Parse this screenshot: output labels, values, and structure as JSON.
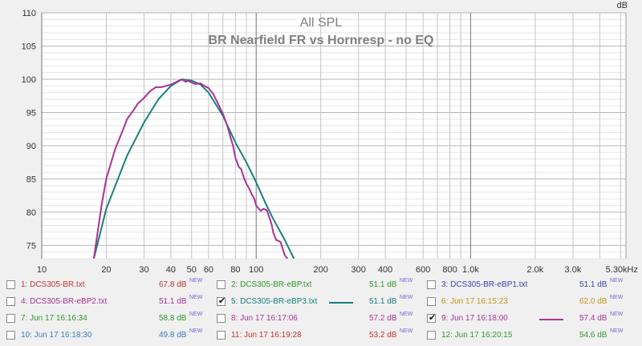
{
  "chart_data": {
    "type": "line",
    "title": "All SPL",
    "subtitle": "BR Nearfield FR vs Hornresp - no EQ",
    "ylabel": "dB",
    "xlabel": "",
    "x_scale": "log",
    "xlim": [
      10,
      5300
    ],
    "ylim": [
      73,
      110
    ],
    "grid": true,
    "y_ticks": [
      {
        "value": 75,
        "label": "75"
      },
      {
        "value": 80,
        "label": "80"
      },
      {
        "value": 85,
        "label": "85"
      },
      {
        "value": 90,
        "label": "90"
      },
      {
        "value": 95,
        "label": "95"
      },
      {
        "value": 100,
        "label": "100"
      },
      {
        "value": 105,
        "label": "105"
      },
      {
        "value": 110,
        "label": "110"
      }
    ],
    "x_ticks": [
      {
        "value": 10,
        "label": "10"
      },
      {
        "value": 20,
        "label": "20"
      },
      {
        "value": 30,
        "label": "30"
      },
      {
        "value": 40,
        "label": "40"
      },
      {
        "value": 50,
        "label": "50"
      },
      {
        "value": 60,
        "label": "60"
      },
      {
        "value": 80,
        "label": "80"
      },
      {
        "value": 100,
        "label": "100"
      },
      {
        "value": 200,
        "label": "200"
      },
      {
        "value": 300,
        "label": "300"
      },
      {
        "value": 400,
        "label": "400"
      },
      {
        "value": 600,
        "label": "600"
      },
      {
        "value": 800,
        "label": "800"
      },
      {
        "value": 1000,
        "label": "1.0k"
      },
      {
        "value": 2000,
        "label": "2.0k"
      },
      {
        "value": 3000,
        "label": "3.0k"
      },
      {
        "value": 5300,
        "label": "5.30kHz"
      }
    ],
    "series": [
      {
        "color": "#1a8080",
        "x": [
          17.5,
          20,
          25,
          30,
          35,
          40,
          45,
          50,
          55,
          60,
          70,
          80,
          90,
          100,
          110,
          120,
          135,
          150
        ],
        "y": [
          73,
          80.5,
          88.5,
          93.5,
          97,
          99,
          100,
          99.8,
          99.2,
          98,
          94.5,
          90.5,
          87.5,
          84.5,
          81.5,
          79,
          76,
          73
        ]
      },
      {
        "color": "#aa3399",
        "x": [
          17.5,
          19,
          20,
          22,
          24,
          25,
          27,
          28,
          30,
          32,
          34,
          36,
          38,
          40,
          43,
          45,
          47,
          48,
          50,
          52,
          55,
          58,
          60,
          63,
          66,
          70,
          73,
          76,
          78,
          80,
          83,
          85,
          88,
          90,
          93,
          95,
          98,
          100,
          105,
          108,
          112,
          115,
          118,
          120,
          124,
          127,
          130,
          133,
          136,
          140
        ],
        "y": [
          73,
          81,
          85,
          89.5,
          92.5,
          94,
          95.5,
          96.3,
          97.2,
          98.2,
          98.8,
          98.8,
          99,
          99.2,
          99.7,
          100,
          99.6,
          99.8,
          99.5,
          99.3,
          99.4,
          98.9,
          98.7,
          97.8,
          96.5,
          94.8,
          93.2,
          91.2,
          90,
          88.2,
          86.8,
          86.5,
          85,
          84.3,
          83.5,
          82.8,
          82,
          81,
          80.2,
          80.5,
          80.3,
          79.3,
          78.2,
          77,
          75.8,
          75.7,
          75.5,
          74.5,
          73.5,
          73
        ]
      }
    ]
  },
  "legend": {
    "items": [
      {
        "name": "1: DCS305-BR.txt",
        "value": "67.8 dB",
        "badge": "NEW",
        "color": "#c83232",
        "checked": false,
        "trace": false
      },
      {
        "name": "2: DCS305-BR-eBP.txt",
        "value": "51.1 dB",
        "badge": "NEW",
        "color": "#2e9a2e",
        "checked": false,
        "trace": false
      },
      {
        "name": "3: DCS305-BR-eBP1.txt",
        "value": "51.1 dB",
        "badge": "NEW",
        "color": "#3f3fb0",
        "checked": false,
        "trace": false
      },
      {
        "name": "4: DCS305-BR-eBP2.txt",
        "value": "51.1 dB",
        "badge": "NEW",
        "color": "#aa3399",
        "checked": false,
        "trace": false
      },
      {
        "name": "5: DCS305-BR-eBP3.txt",
        "value": "51.1 dB",
        "badge": "NEW",
        "color": "#1a8080",
        "checked": true,
        "trace": true
      },
      {
        "name": "6: Jun 17 16:15:23",
        "value": "62.0 dB",
        "badge": "NEW",
        "color": "#c8961e",
        "checked": false,
        "trace": false
      },
      {
        "name": "7: Jun 17 16:16:34",
        "value": "58.8 dB",
        "badge": "NEW",
        "color": "#2e9a2e",
        "checked": false,
        "trace": false
      },
      {
        "name": "8: Jun 17 16:17:06",
        "value": "57.2 dB",
        "badge": "NEW",
        "color": "#aa3399",
        "checked": false,
        "trace": false
      },
      {
        "name": "9: Jun 17 16:18:00",
        "value": "57.4 dB",
        "badge": "NEW",
        "color": "#aa3399",
        "checked": true,
        "trace": true
      },
      {
        "name": "10: Jun 17 16:18:30",
        "value": "49.8 dB",
        "badge": "NEW",
        "color": "#3a7fc0",
        "checked": false,
        "trace": false
      },
      {
        "name": "11: Jun 17 16:19:28",
        "value": "53.2 dB",
        "badge": "NEW",
        "color": "#c83232",
        "checked": false,
        "trace": false
      },
      {
        "name": "12: Jun 17 16:20:15",
        "value": "54.6 dB",
        "badge": "NEW",
        "color": "#2e9a2e",
        "checked": false,
        "trace": false
      }
    ]
  },
  "icons": {
    "checkbox": "checkbox-icon",
    "check": "check-mark-icon"
  }
}
